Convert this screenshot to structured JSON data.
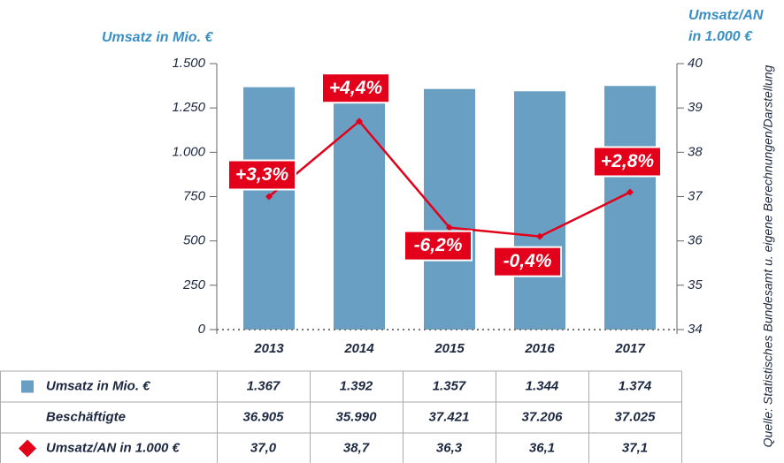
{
  "chart_data": {
    "type": "bar_line",
    "ylabel": "Umsatz in Mio. €",
    "y2label": [
      "Umsatz/AN",
      "in 1.000 €"
    ],
    "source": "Quelle: Statistisches Bundesamt u. eigene Berechnungen/Darstellung",
    "categories": [
      "2013",
      "2014",
      "2015",
      "2016",
      "2017"
    ],
    "series": [
      {
        "name": "Umsatz in Mio. €",
        "type": "bar",
        "color": "#6a9fc4",
        "values": [
          1367,
          1392,
          1357,
          1344,
          1374
        ],
        "value_labels": [
          "1.367",
          "1.392",
          "1.357",
          "1.344",
          "1.374"
        ]
      },
      {
        "name": "Beschäftigte",
        "values": [
          36905,
          35990,
          37421,
          37206,
          37025
        ],
        "value_labels": [
          "36.905",
          "35.990",
          "37.421",
          "37.206",
          "37.025"
        ]
      },
      {
        "name": "Umsatz/AN in 1.000 €",
        "type": "line",
        "axis": "y2",
        "color": "#e2001a",
        "values": [
          37.0,
          38.7,
          36.3,
          36.1,
          37.1
        ],
        "value_labels": [
          "37,0",
          "38,7",
          "36,3",
          "36,1",
          "37,1"
        ],
        "annotations": [
          "+3,3%",
          "+4,4%",
          "-6,2%",
          "-0,4%",
          "+2,8%"
        ]
      }
    ],
    "ylim": [
      0,
      1500
    ],
    "yticks": [
      0,
      250,
      500,
      750,
      {
        "value": 1000,
        "label": "1.000"
      },
      {
        "value": 1250,
        "label": "1.250"
      },
      {
        "value": 1500,
        "label": "1.500"
      }
    ],
    "y2lim": [
      34,
      40
    ],
    "y2ticks": [
      34,
      35,
      36,
      37,
      38,
      39,
      40
    ]
  }
}
